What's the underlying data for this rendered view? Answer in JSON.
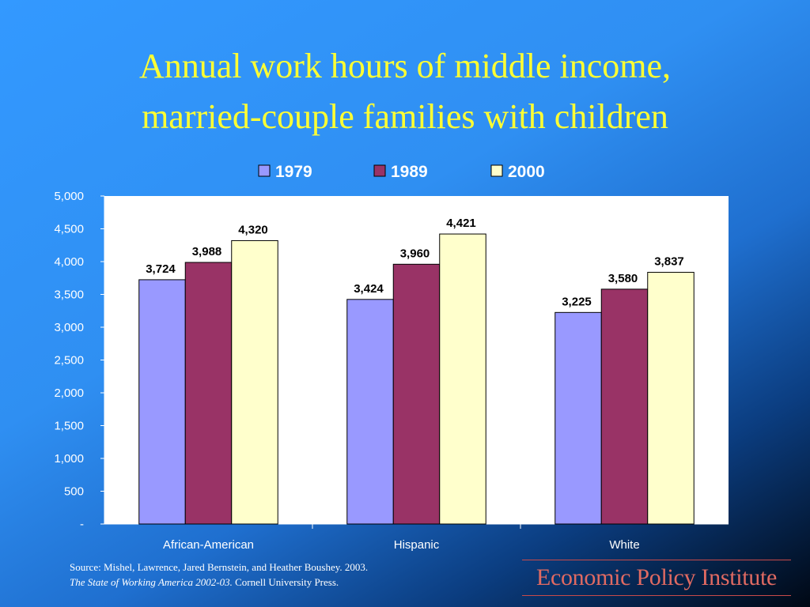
{
  "title_lines": [
    "Annual work hours of middle income,",
    "married-couple families with children"
  ],
  "source": {
    "line1": "Source:  Mishel, Lawrence, Jared Bernstein, and Heather Boushey. 2003.",
    "line2_italic": "The State of Working America 2002-03.",
    "line2_rest": " Cornell University Press."
  },
  "brand": "Economic Policy Institute",
  "colors": {
    "series_1979": "#9999ff",
    "series_1989": "#993366",
    "series_2000": "#ffffcc",
    "title": "#ffff33"
  },
  "chart_data": {
    "type": "bar",
    "categories": [
      "African-American",
      "Hispanic",
      "White"
    ],
    "series": [
      {
        "name": "1979",
        "values": [
          3724,
          3424,
          3225
        ],
        "labels": [
          "3,724",
          "3,424",
          "3,225"
        ]
      },
      {
        "name": "1989",
        "values": [
          3988,
          3960,
          3580
        ],
        "labels": [
          "3,988",
          "3,960",
          "3,580"
        ]
      },
      {
        "name": "2000",
        "values": [
          4320,
          4421,
          3837
        ],
        "labels": [
          "4,320",
          "4,421",
          "3,837"
        ]
      }
    ],
    "ylim": [
      0,
      5000
    ],
    "yticks": [
      0,
      500,
      1000,
      1500,
      2000,
      2500,
      3000,
      3500,
      4000,
      4500,
      5000
    ],
    "ytick_labels": [
      "-",
      "500",
      "1,000",
      "1,500",
      "2,000",
      "2,500",
      "3,000",
      "3,500",
      "4,000",
      "4,500",
      "5,000"
    ],
    "legend_position": "top",
    "grid": false
  }
}
